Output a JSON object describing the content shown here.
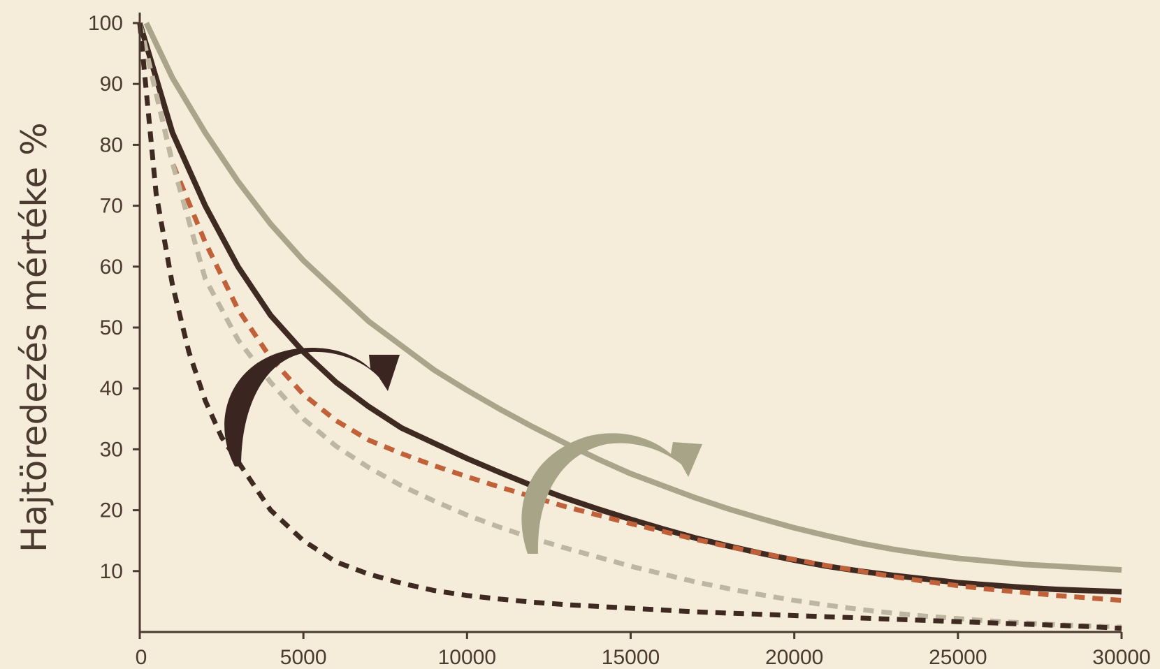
{
  "chart_data": {
    "type": "line",
    "title": "",
    "xlabel": "",
    "ylabel": "Hajtöredezés mértéke %",
    "xlim": [
      0,
      30000
    ],
    "ylim": [
      0,
      100
    ],
    "x_ticks": [
      "0",
      "5000",
      "10000",
      "15000",
      "20000",
      "25000",
      "30000"
    ],
    "y_ticks": [
      "10",
      "20",
      "30",
      "40",
      "50",
      "60",
      "70",
      "80",
      "90",
      "100"
    ],
    "grid": false,
    "legend": "none",
    "series": [
      {
        "style": "solid",
        "color": "#aaa48a",
        "x": [
          200,
          1000,
          2000,
          3000,
          4000,
          5000,
          6000,
          7000,
          8000,
          9000,
          10000,
          11000,
          12000,
          13000,
          14000,
          15000,
          16000,
          17000,
          18000,
          19000,
          20000,
          21000,
          22000,
          23000,
          24000,
          25000,
          26000,
          27000,
          28000,
          29000,
          30000
        ],
        "y": [
          100,
          91,
          82,
          74,
          67,
          61,
          56,
          51,
          47,
          43,
          39.7,
          36.6,
          33.7,
          31,
          28.4,
          26,
          24,
          22,
          20.2,
          18.6,
          17.1,
          15.8,
          14.6,
          13.6,
          12.8,
          12.1,
          11.6,
          11.1,
          10.8,
          10.5,
          10.2
        ]
      },
      {
        "style": "solid",
        "color": "#3f2a22",
        "x": [
          0,
          1000,
          2000,
          3000,
          4000,
          5000,
          6000,
          7000,
          8000,
          9000,
          10000,
          11000,
          12000,
          13000,
          14000,
          15000,
          16000,
          17000,
          18000,
          19000,
          20000,
          21000,
          22000,
          23000,
          24000,
          25000,
          26000,
          27000,
          28000,
          29000,
          30000
        ],
        "y": [
          100,
          82,
          70,
          60,
          52,
          46,
          41,
          37,
          33.5,
          31,
          28.5,
          26.2,
          24,
          22,
          20.2,
          18.5,
          16.9,
          15.4,
          14.1,
          12.9,
          11.8,
          10.8,
          10,
          9.3,
          8.7,
          8.1,
          7.7,
          7.3,
          7,
          6.8,
          6.6
        ]
      },
      {
        "style": "dashed",
        "color": "#c0613a",
        "x": [
          0,
          1000,
          2000,
          3000,
          4000,
          5000,
          6000,
          7000,
          8000,
          9000,
          10000,
          11000,
          12000,
          13000,
          14000,
          15000,
          16000,
          17000,
          18000,
          19000,
          20000,
          21000,
          22000,
          23000,
          24000,
          25000,
          26000,
          27000,
          28000,
          29000,
          30000
        ],
        "y": [
          100,
          77,
          64,
          53,
          45,
          39,
          34.7,
          31.5,
          29.3,
          27.3,
          25.5,
          23.8,
          22.2,
          20.6,
          19.2,
          17.8,
          16.5,
          15.2,
          14,
          12.9,
          11.9,
          10.9,
          10,
          9.1,
          8.3,
          7.6,
          7,
          6.5,
          6,
          5.6,
          5.2
        ]
      },
      {
        "style": "dashed",
        "color": "#bdb6a0",
        "x": [
          0,
          1000,
          2000,
          3000,
          4000,
          5000,
          6000,
          7000,
          8000,
          9000,
          10000,
          11000,
          12000,
          13000,
          14000,
          15000,
          16000,
          17000,
          18000,
          19000,
          20000,
          21000,
          22000,
          23000,
          24000,
          25000,
          26000,
          27000,
          28000,
          29000,
          30000
        ],
        "y": [
          100,
          77,
          58,
          48,
          41,
          35,
          30.5,
          27,
          24,
          21.5,
          19.2,
          17.2,
          15.4,
          13.8,
          12.3,
          10.8,
          9.5,
          8.2,
          7.1,
          6.1,
          5.2,
          4.4,
          3.7,
          3.1,
          2.6,
          2.2,
          1.8,
          1.5,
          1.2,
          1,
          0.8
        ]
      },
      {
        "style": "dashed",
        "color": "#3f2a22",
        "x": [
          0,
          500,
          1000,
          1500,
          2000,
          2500,
          3000,
          4000,
          5000,
          6000,
          7000,
          8000,
          9000,
          10000,
          11000,
          12000,
          13000,
          14000,
          15000,
          16000,
          17000,
          18000,
          19000,
          20000,
          21000,
          22000,
          23000,
          24000,
          25000,
          26000,
          27000,
          28000,
          29000,
          30000
        ],
        "y": [
          100,
          72,
          57,
          46,
          38,
          32,
          28,
          20,
          15,
          11.5,
          9.5,
          8,
          6.8,
          6,
          5.4,
          4.9,
          4.5,
          4.2,
          3.9,
          3.6,
          3.3,
          3.1,
          2.9,
          2.7,
          2.5,
          2.3,
          2.1,
          1.9,
          1.7,
          1.5,
          1.3,
          1.1,
          0.9,
          0.6
        ]
      }
    ]
  },
  "annotations": {
    "arrow_dark_color": "#3a2520",
    "arrow_light_color": "#a8a488",
    "axis_color": "#4a3a30",
    "background": "#f5ecda"
  }
}
